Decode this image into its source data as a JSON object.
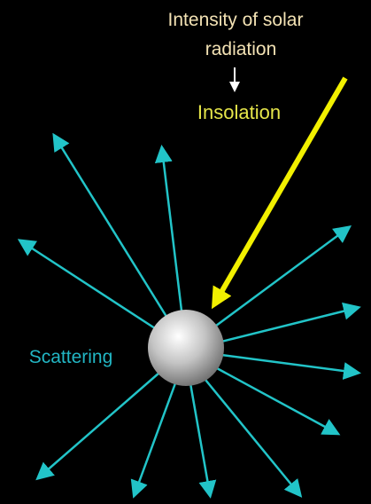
{
  "labels": {
    "intensity": [
      "Intensity of solar",
      "radiation"
    ],
    "insolation": "Insolation",
    "scattering": "Scattering"
  }
}
